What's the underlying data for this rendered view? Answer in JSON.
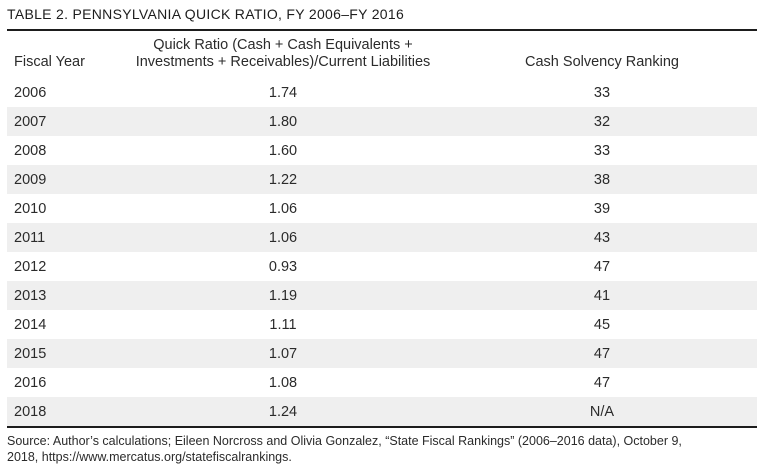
{
  "title": "TABLE 2. PENNSYLVANIA QUICK RATIO, FY 2006–FY 2016",
  "table": {
    "columns": {
      "fiscal_year": "Fiscal Year",
      "quick_ratio_line1": "Quick Ratio (Cash + Cash Equivalents +",
      "quick_ratio_line2": "Investments + Receivables)/Current Liabilities",
      "quick_ratio_full": "Quick Ratio (Cash + Cash Equivalents + Investments + Receivables)/Current Liabilities",
      "cash_solvency": "Cash Solvency Ranking"
    },
    "rows": [
      {
        "year": "2006",
        "ratio": "1.74",
        "ranking": "33"
      },
      {
        "year": "2007",
        "ratio": "1.80",
        "ranking": "32"
      },
      {
        "year": "2008",
        "ratio": "1.60",
        "ranking": "33"
      },
      {
        "year": "2009",
        "ratio": "1.22",
        "ranking": "38"
      },
      {
        "year": "2010",
        "ratio": "1.06",
        "ranking": "39"
      },
      {
        "year": "2011",
        "ratio": "1.06",
        "ranking": "43"
      },
      {
        "year": "2012",
        "ratio": "0.93",
        "ranking": "47"
      },
      {
        "year": "2013",
        "ratio": "1.19",
        "ranking": "41"
      },
      {
        "year": "2014",
        "ratio": "1.11",
        "ranking": "45"
      },
      {
        "year": "2015",
        "ratio": "1.07",
        "ranking": "47"
      },
      {
        "year": "2016",
        "ratio": "1.08",
        "ranking": "47"
      },
      {
        "year": "2018",
        "ratio": "1.24",
        "ranking": "N/A"
      }
    ]
  },
  "source": {
    "line1": "Source: Author’s calculations; Eileen Norcross and Olivia Gonzalez, “State Fiscal Rankings” (2006–2016 data), October 9,",
    "line2": "2018, https://www.mercatus.org/statefiscalrankings.",
    "full": "Source: Author’s calculations; Eileen Norcross and Olivia Gonzalez, “State Fiscal Rankings” (2006–2016 data), October 9, 2018, https://www.mercatus.org/statefiscalrankings."
  },
  "colors": {
    "row_alt_background": "#efefef",
    "rule": "#1d1d1d",
    "text": "#2b2b2b",
    "background": "#ffffff"
  }
}
